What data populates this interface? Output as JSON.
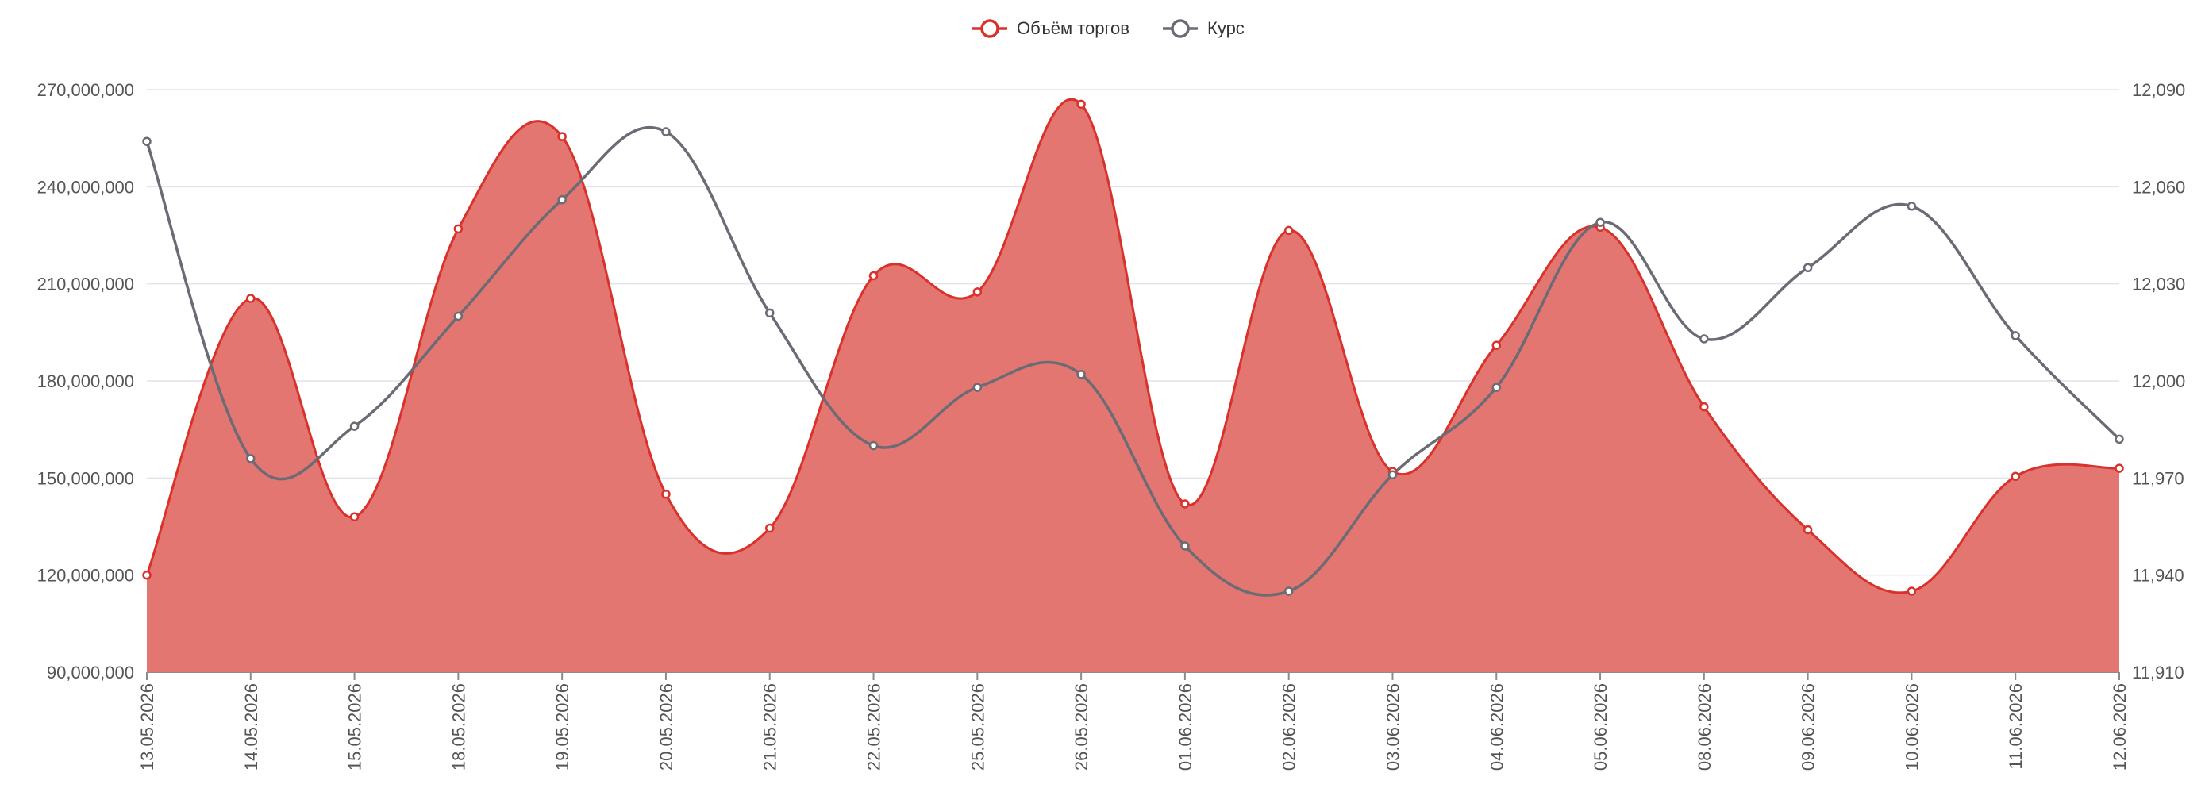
{
  "chart_data": {
    "type": "area",
    "title": "",
    "legend_position": "top-center",
    "grid": true,
    "categories": [
      "13.05.2026",
      "14.05.2026",
      "15.05.2026",
      "18.05.2026",
      "19.05.2026",
      "20.05.2026",
      "21.05.2026",
      "22.05.2026",
      "25.05.2026",
      "26.05.2026",
      "01.06.2026",
      "02.06.2026",
      "03.06.2026",
      "04.06.2026",
      "05.06.2026",
      "08.06.2026",
      "09.06.2026",
      "10.06.2026",
      "11.06.2026",
      "12.06.2026"
    ],
    "y_left": {
      "ylim": [
        90000000,
        270000000
      ],
      "ticks": [
        "270,000,000",
        "240,000,000",
        "210,000,000",
        "180,000,000",
        "150,000,000",
        "120,000,000",
        "90,000,000"
      ]
    },
    "y_right": {
      "ylim": [
        11910,
        12090
      ],
      "ticks": [
        "12,090",
        "12,060",
        "12,030",
        "12,000",
        "11,970",
        "11,940",
        "11,910"
      ]
    },
    "series": [
      {
        "name": "Объём торгов",
        "type": "area",
        "axis": "left",
        "color": "#d9312b",
        "fill": "#e37670",
        "values": [
          120000000,
          205500000,
          138000000,
          227000000,
          255500000,
          145000000,
          134500000,
          212500000,
          207500000,
          265500000,
          142000000,
          226500000,
          152000000,
          191000000,
          227500000,
          172000000,
          134000000,
          115000000,
          150500000,
          153000000
        ]
      },
      {
        "name": "Курс",
        "type": "line",
        "axis": "right",
        "color": "#6b6b75",
        "values": [
          12074,
          11976,
          11986,
          12020,
          12056,
          12077,
          12021,
          11980,
          11998,
          12002,
          11949,
          11935,
          11971,
          11998,
          12049,
          12013,
          12035,
          12054,
          12014,
          11982
        ]
      }
    ]
  }
}
